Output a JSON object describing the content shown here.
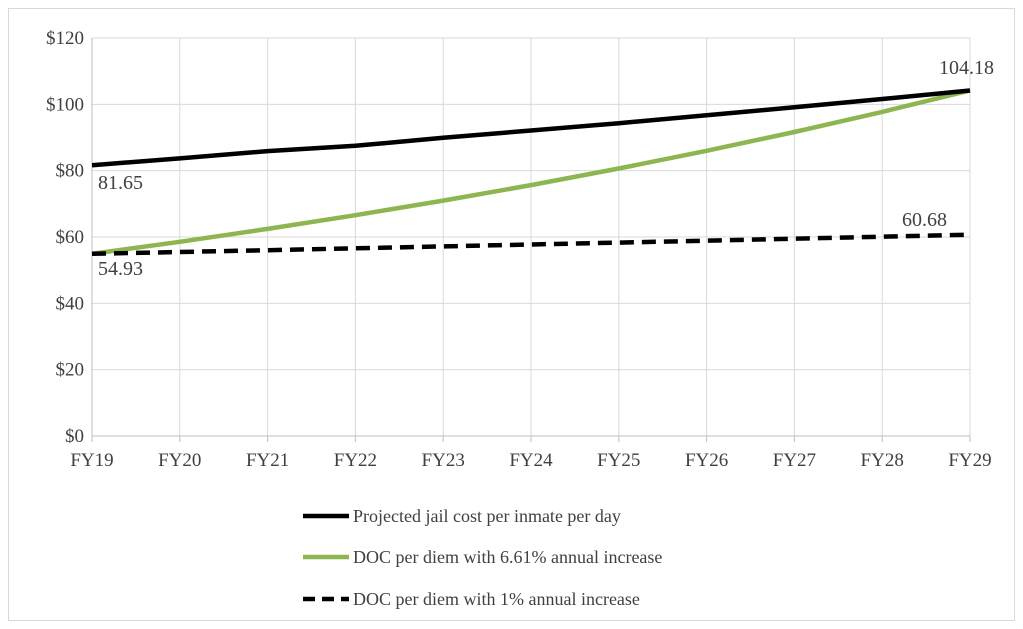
{
  "chart_data": {
    "type": "line",
    "categories": [
      "FY19",
      "FY20",
      "FY21",
      "FY22",
      "FY23",
      "FY24",
      "FY25",
      "FY26",
      "FY27",
      "FY28",
      "FY29"
    ],
    "y_ticks": [
      "$0",
      "$20",
      "$40",
      "$60",
      "$80",
      "$100",
      "$120"
    ],
    "ylim": [
      0,
      120
    ],
    "grid": true,
    "legend_position": "bottom",
    "series": [
      {
        "name": "Projected jail cost per inmate per day",
        "key": "jail",
        "color": "#000000",
        "dash": "solid",
        "values": [
          81.65,
          83.7,
          85.9,
          87.5,
          89.9,
          92.1,
          94.3,
          96.7,
          99.1,
          101.6,
          104.18
        ]
      },
      {
        "name": "DOC per diem with 6.61% annual increase",
        "key": "doc661",
        "color": "#8db650",
        "dash": "solid",
        "values": [
          54.93,
          58.56,
          62.43,
          66.56,
          70.96,
          75.65,
          80.65,
          85.98,
          91.66,
          97.72,
          104.18
        ]
      },
      {
        "name": "DOC per diem with 1% annual increase",
        "key": "doc1",
        "color": "#000000",
        "dash": "dashed",
        "values": [
          54.93,
          55.48,
          56.03,
          56.59,
          57.16,
          57.73,
          58.31,
          58.89,
          59.48,
          60.08,
          60.68
        ]
      }
    ],
    "annotations": [
      "81.65",
      "54.93",
      "104.18",
      "60.68"
    ]
  }
}
